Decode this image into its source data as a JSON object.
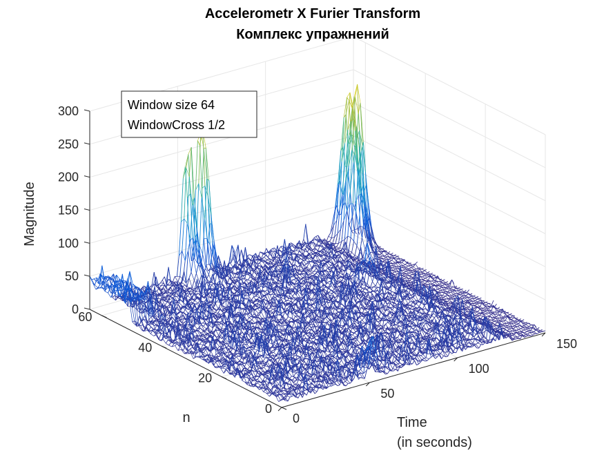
{
  "chart_data": {
    "type": "mesh3d",
    "title": "Accelerometr X Furier Transform",
    "subtitle": "Комплекс упражнений",
    "xlabel": "n",
    "ylabel": [
      "Time",
      "(in seconds)"
    ],
    "zlabel": "Magnitude",
    "n_ticks": [
      "0",
      "20",
      "40",
      "60"
    ],
    "time_ticks": [
      "0",
      "50",
      "100",
      "150"
    ],
    "magnitude_ticks": [
      "0",
      "50",
      "100",
      "150",
      "200",
      "250",
      "300"
    ],
    "n_range": [
      0,
      64
    ],
    "time_range": [
      0,
      150
    ],
    "magnitude_range": [
      0,
      300
    ],
    "grid": true,
    "colormap": "parula",
    "annotation": [
      "Window size 64",
      "WindowCross 1/2"
    ],
    "peaks": [
      {
        "n": 63,
        "time": 62,
        "magnitude": 230
      },
      {
        "n": 63,
        "time": 54,
        "magnitude": 190
      },
      {
        "n": 60,
        "time": 145,
        "magnitude": 240
      },
      {
        "n": 60,
        "time": 140,
        "magnitude": 210
      },
      {
        "n": 56,
        "time": 138,
        "magnitude": 165
      },
      {
        "n": 0,
        "time": 52,
        "magnitude": 55
      },
      {
        "n": 40,
        "time": 118,
        "magnitude": 40
      }
    ]
  }
}
